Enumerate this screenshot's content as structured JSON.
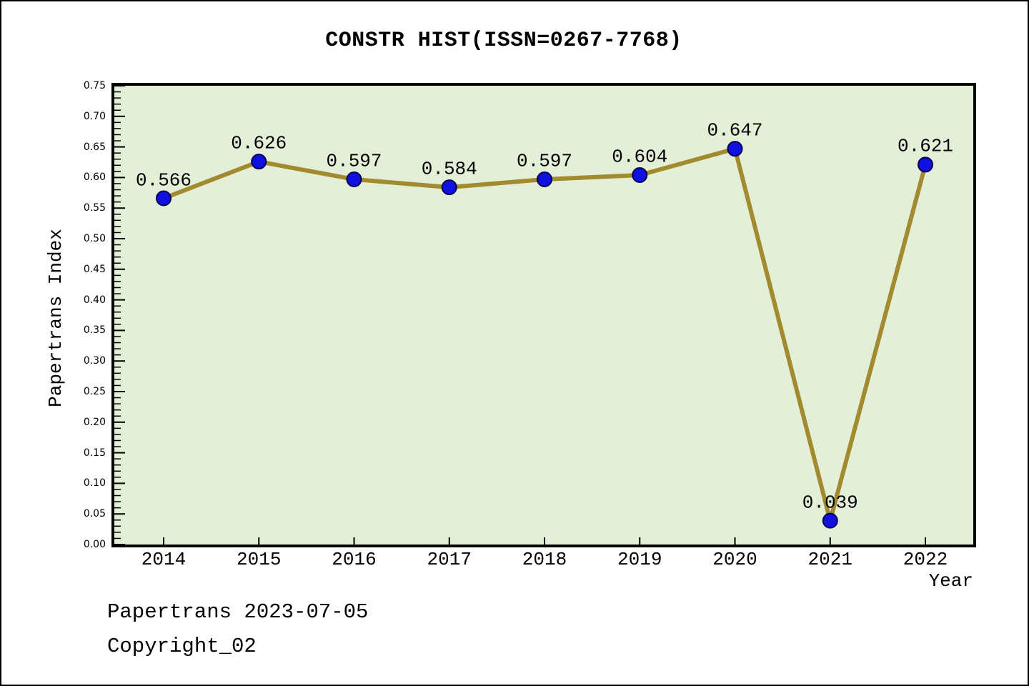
{
  "title": "CONSTR HIST(ISSN=0267-7768)",
  "footer": {
    "line1": "Papertrans 2023-07-05",
    "line2": "Copyright_02"
  },
  "chart_data": {
    "type": "line",
    "title": "CONSTR HIST(ISSN=0267-7768)",
    "xlabel": "Year",
    "ylabel": "Papertrans Index",
    "x": [
      2014,
      2015,
      2016,
      2017,
      2018,
      2019,
      2020,
      2021,
      2022
    ],
    "series": [
      {
        "name": "Papertrans Index",
        "values": [
          0.566,
          0.626,
          0.597,
          0.584,
          0.597,
          0.604,
          0.647,
          0.039,
          0.621
        ]
      }
    ],
    "point_labels": [
      "0.566",
      "0.626",
      "0.597",
      "0.584",
      "0.597",
      "0.604",
      "0.647",
      "0.039",
      "0.621"
    ],
    "ylim": [
      0.0,
      0.75
    ],
    "ytick_step": 0.05,
    "ytick_minor_step": 0.01,
    "ytick_label_format": "two-decimals",
    "grid": false,
    "legend": "none",
    "colors": {
      "line": "#a28a2e",
      "marker_fill": "#1010e0",
      "marker_edge": "#000050",
      "plot_bg": "#e4efd8",
      "figure_bg": "#ffffff",
      "axis": "#000000",
      "text": "#000000"
    }
  }
}
